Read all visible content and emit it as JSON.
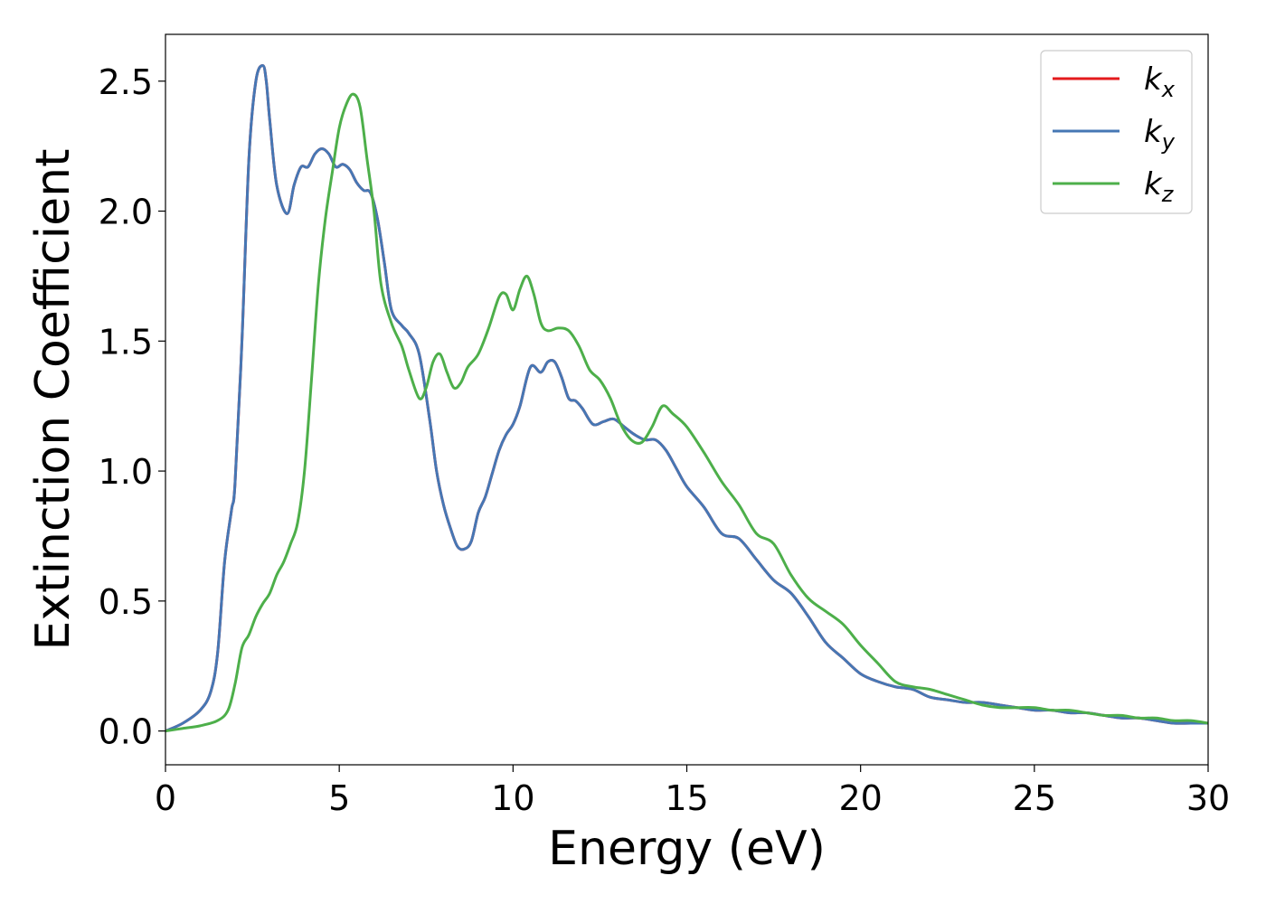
{
  "chart_data": {
    "type": "line",
    "title": "",
    "xlabel": "Energy (eV)",
    "ylabel": "Extinction Coefficient",
    "xlim": [
      0,
      30
    ],
    "ylim": [
      -0.13,
      2.68
    ],
    "xticks": [
      0,
      5,
      10,
      15,
      20,
      25,
      30
    ],
    "xtick_labels": [
      "0",
      "5",
      "10",
      "15",
      "20",
      "25",
      "30"
    ],
    "yticks": [
      0.0,
      0.5,
      1.0,
      1.5,
      2.0,
      2.5
    ],
    "ytick_labels": [
      "0.0",
      "0.5",
      "1.0",
      "1.5",
      "2.0",
      "2.5"
    ],
    "grid": false,
    "legend_position": "top-right",
    "series": [
      {
        "name": "k",
        "subscript": "x",
        "color": "#e41a1c",
        "x": [
          0,
          0.5,
          1.0,
          1.3,
          1.5,
          1.7,
          1.9,
          2.0,
          2.2,
          2.4,
          2.6,
          2.8,
          2.9,
          3.0,
          3.2,
          3.5,
          3.7,
          3.9,
          4.1,
          4.3,
          4.5,
          4.7,
          4.9,
          5.1,
          5.3,
          5.5,
          5.7,
          5.9,
          6.1,
          6.3,
          6.5,
          6.8,
          7.0,
          7.3,
          7.6,
          7.8,
          8.0,
          8.2,
          8.4,
          8.6,
          8.8,
          9.0,
          9.2,
          9.4,
          9.6,
          9.8,
          10.0,
          10.2,
          10.5,
          10.8,
          11.0,
          11.2,
          11.4,
          11.6,
          11.8,
          12.0,
          12.3,
          12.6,
          12.9,
          13.2,
          13.5,
          13.8,
          14.1,
          14.4,
          14.7,
          15.0,
          15.5,
          16.0,
          16.5,
          17.0,
          17.5,
          18.0,
          18.5,
          19.0,
          19.5,
          20.0,
          20.5,
          21.0,
          21.5,
          22.0,
          22.5,
          23.0,
          23.5,
          24.0,
          24.5,
          25.0,
          25.5,
          26.0,
          26.5,
          27.0,
          27.5,
          28.0,
          28.5,
          29.0,
          29.5,
          30.0
        ],
        "values": [
          0.0,
          0.03,
          0.08,
          0.15,
          0.3,
          0.65,
          0.85,
          0.95,
          1.5,
          2.2,
          2.5,
          2.56,
          2.5,
          2.35,
          2.1,
          1.99,
          2.1,
          2.17,
          2.17,
          2.22,
          2.24,
          2.22,
          2.17,
          2.18,
          2.16,
          2.11,
          2.08,
          2.07,
          1.97,
          1.8,
          1.62,
          1.56,
          1.53,
          1.45,
          1.2,
          1.0,
          0.87,
          0.78,
          0.71,
          0.7,
          0.73,
          0.84,
          0.9,
          0.99,
          1.08,
          1.14,
          1.18,
          1.25,
          1.4,
          1.38,
          1.42,
          1.42,
          1.36,
          1.28,
          1.27,
          1.24,
          1.18,
          1.19,
          1.2,
          1.17,
          1.14,
          1.12,
          1.12,
          1.08,
          1.01,
          0.94,
          0.86,
          0.76,
          0.74,
          0.66,
          0.58,
          0.53,
          0.44,
          0.34,
          0.28,
          0.22,
          0.19,
          0.17,
          0.16,
          0.13,
          0.12,
          0.11,
          0.11,
          0.1,
          0.09,
          0.08,
          0.08,
          0.07,
          0.07,
          0.06,
          0.05,
          0.05,
          0.04,
          0.03,
          0.03,
          0.03
        ]
      },
      {
        "name": "k",
        "subscript": "y",
        "color": "#4677b4",
        "x": [
          0,
          0.5,
          1.0,
          1.3,
          1.5,
          1.7,
          1.9,
          2.0,
          2.2,
          2.4,
          2.6,
          2.8,
          2.9,
          3.0,
          3.2,
          3.5,
          3.7,
          3.9,
          4.1,
          4.3,
          4.5,
          4.7,
          4.9,
          5.1,
          5.3,
          5.5,
          5.7,
          5.9,
          6.1,
          6.3,
          6.5,
          6.8,
          7.0,
          7.3,
          7.6,
          7.8,
          8.0,
          8.2,
          8.4,
          8.6,
          8.8,
          9.0,
          9.2,
          9.4,
          9.6,
          9.8,
          10.0,
          10.2,
          10.5,
          10.8,
          11.0,
          11.2,
          11.4,
          11.6,
          11.8,
          12.0,
          12.3,
          12.6,
          12.9,
          13.2,
          13.5,
          13.8,
          14.1,
          14.4,
          14.7,
          15.0,
          15.5,
          16.0,
          16.5,
          17.0,
          17.5,
          18.0,
          18.5,
          19.0,
          19.5,
          20.0,
          20.5,
          21.0,
          21.5,
          22.0,
          22.5,
          23.0,
          23.5,
          24.0,
          24.5,
          25.0,
          25.5,
          26.0,
          26.5,
          27.0,
          27.5,
          28.0,
          28.5,
          29.0,
          29.5,
          30.0
        ],
        "values": [
          0.0,
          0.03,
          0.08,
          0.15,
          0.3,
          0.65,
          0.85,
          0.95,
          1.5,
          2.2,
          2.5,
          2.56,
          2.5,
          2.35,
          2.1,
          1.99,
          2.1,
          2.17,
          2.17,
          2.22,
          2.24,
          2.22,
          2.17,
          2.18,
          2.16,
          2.11,
          2.08,
          2.07,
          1.97,
          1.8,
          1.62,
          1.56,
          1.53,
          1.45,
          1.2,
          1.0,
          0.87,
          0.78,
          0.71,
          0.7,
          0.73,
          0.84,
          0.9,
          0.99,
          1.08,
          1.14,
          1.18,
          1.25,
          1.4,
          1.38,
          1.42,
          1.42,
          1.36,
          1.28,
          1.27,
          1.24,
          1.18,
          1.19,
          1.2,
          1.17,
          1.14,
          1.12,
          1.12,
          1.08,
          1.01,
          0.94,
          0.86,
          0.76,
          0.74,
          0.66,
          0.58,
          0.53,
          0.44,
          0.34,
          0.28,
          0.22,
          0.19,
          0.17,
          0.16,
          0.13,
          0.12,
          0.11,
          0.11,
          0.1,
          0.09,
          0.08,
          0.08,
          0.07,
          0.07,
          0.06,
          0.05,
          0.05,
          0.04,
          0.03,
          0.03,
          0.03
        ]
      },
      {
        "name": "k",
        "subscript": "z",
        "color": "#4daf4a",
        "x": [
          0,
          0.5,
          1.0,
          1.5,
          1.8,
          2.0,
          2.2,
          2.4,
          2.6,
          2.8,
          3.0,
          3.2,
          3.4,
          3.6,
          3.8,
          4.0,
          4.2,
          4.4,
          4.6,
          4.8,
          5.0,
          5.2,
          5.4,
          5.6,
          5.8,
          6.0,
          6.2,
          6.5,
          6.8,
          7.0,
          7.3,
          7.5,
          7.7,
          7.9,
          8.1,
          8.3,
          8.5,
          8.7,
          9.0,
          9.3,
          9.6,
          9.8,
          10.0,
          10.2,
          10.4,
          10.6,
          10.8,
          11.0,
          11.3,
          11.6,
          11.9,
          12.2,
          12.5,
          12.8,
          13.1,
          13.4,
          13.7,
          14.0,
          14.3,
          14.6,
          15.0,
          15.5,
          16.0,
          16.5,
          17.0,
          17.5,
          18.0,
          18.5,
          19.0,
          19.5,
          20.0,
          20.5,
          21.0,
          21.5,
          22.0,
          22.5,
          23.0,
          23.5,
          24.0,
          24.5,
          25.0,
          25.5,
          26.0,
          26.5,
          27.0,
          27.5,
          28.0,
          28.5,
          29.0,
          29.5,
          30.0
        ],
        "values": [
          0.0,
          0.01,
          0.02,
          0.04,
          0.08,
          0.18,
          0.32,
          0.37,
          0.44,
          0.49,
          0.53,
          0.6,
          0.65,
          0.72,
          0.8,
          1.0,
          1.35,
          1.72,
          1.97,
          2.15,
          2.32,
          2.41,
          2.45,
          2.4,
          2.2,
          2.0,
          1.72,
          1.57,
          1.48,
          1.39,
          1.28,
          1.32,
          1.42,
          1.45,
          1.38,
          1.32,
          1.34,
          1.4,
          1.45,
          1.55,
          1.67,
          1.68,
          1.62,
          1.7,
          1.75,
          1.68,
          1.57,
          1.54,
          1.55,
          1.54,
          1.48,
          1.39,
          1.35,
          1.28,
          1.18,
          1.12,
          1.11,
          1.17,
          1.25,
          1.22,
          1.17,
          1.07,
          0.96,
          0.87,
          0.76,
          0.72,
          0.6,
          0.51,
          0.46,
          0.41,
          0.33,
          0.26,
          0.19,
          0.17,
          0.16,
          0.14,
          0.12,
          0.1,
          0.09,
          0.09,
          0.09,
          0.08,
          0.08,
          0.07,
          0.06,
          0.06,
          0.05,
          0.05,
          0.04,
          0.04,
          0.03
        ]
      }
    ]
  }
}
